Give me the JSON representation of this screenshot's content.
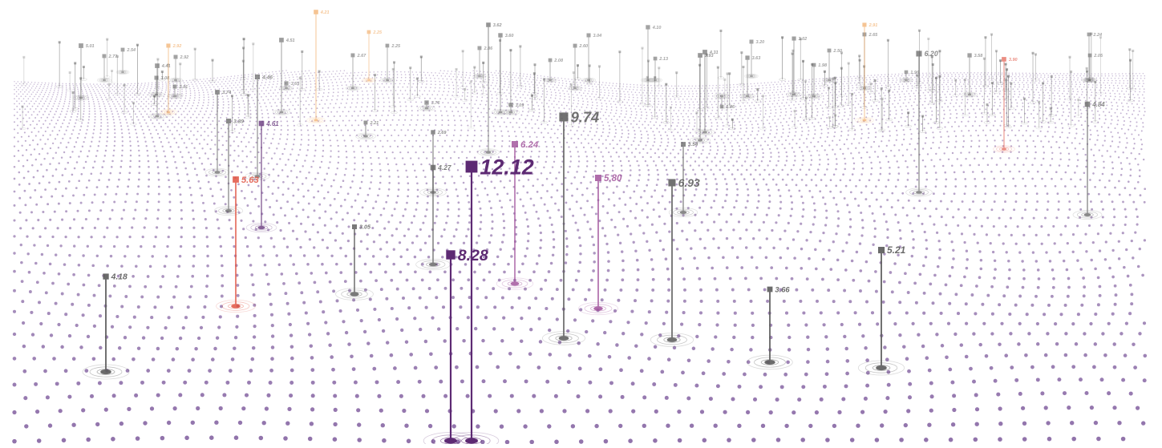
{
  "colors": {
    "dots": "#8a6aa6",
    "default": "#5c5c5c",
    "purple_strong": "#5d2a73",
    "purple_light": "#a0509a",
    "red": "#e0503e",
    "orange": "#f0a050",
    "background": "#ffffff"
  },
  "chart_data": {
    "type": "scatter",
    "title": "",
    "xlabel": "",
    "ylabel": "",
    "points": [
      {
        "value": 12.12,
        "tone": "purple_strong"
      },
      {
        "value": 9.74,
        "tone": "default"
      },
      {
        "value": 8.28,
        "tone": "purple_strong"
      },
      {
        "value": 6.93,
        "tone": "default"
      },
      {
        "value": 6.24,
        "tone": "purple_light"
      },
      {
        "value": 6.2,
        "tone": "default"
      },
      {
        "value": 5.8,
        "tone": "purple_light"
      },
      {
        "value": 5.63,
        "tone": "red"
      },
      {
        "value": 5.21,
        "tone": "default"
      },
      {
        "value": 5.01,
        "tone": "default"
      },
      {
        "value": 4.84,
        "tone": "default"
      },
      {
        "value": 4.61,
        "tone": "purple_strong"
      },
      {
        "value": 4.51,
        "tone": "default"
      },
      {
        "value": 4.46,
        "tone": "default"
      },
      {
        "value": 4.41,
        "tone": "default"
      },
      {
        "value": 4.31,
        "tone": "default"
      },
      {
        "value": 4.27,
        "tone": "default"
      },
      {
        "value": 4.21,
        "tone": "orange"
      },
      {
        "value": 4.18,
        "tone": "default"
      },
      {
        "value": 4.1,
        "tone": "default"
      },
      {
        "value": 3.93,
        "tone": "default"
      },
      {
        "value": 3.9,
        "tone": "red"
      },
      {
        "value": 3.89,
        "tone": "default"
      },
      {
        "value": 3.76,
        "tone": "default"
      },
      {
        "value": 3.74,
        "tone": "default"
      },
      {
        "value": 3.66,
        "tone": "default"
      },
      {
        "value": 3.65,
        "tone": "default"
      },
      {
        "value": 3.63,
        "tone": "default"
      },
      {
        "value": 3.62,
        "tone": "default"
      },
      {
        "value": 3.6,
        "tone": "default"
      },
      {
        "value": 3.58,
        "tone": "default"
      },
      {
        "value": 3.54,
        "tone": "default"
      },
      {
        "value": 3.2,
        "tone": "default"
      },
      {
        "value": 3.09,
        "tone": "default"
      },
      {
        "value": 3.08,
        "tone": "default"
      },
      {
        "value": 3.05,
        "tone": "default"
      },
      {
        "value": 3.04,
        "tone": "default"
      },
      {
        "value": 3.02,
        "tone": "default"
      },
      {
        "value": 2.92,
        "tone": "default"
      },
      {
        "value": 2.92,
        "tone": "orange"
      },
      {
        "value": 2.91,
        "tone": "orange"
      },
      {
        "value": 2.86,
        "tone": "default"
      },
      {
        "value": 2.81,
        "tone": "default"
      },
      {
        "value": 2.77,
        "tone": "default"
      },
      {
        "value": 2.69,
        "tone": "default"
      },
      {
        "value": 2.67,
        "tone": "default"
      },
      {
        "value": 2.65,
        "tone": "default"
      },
      {
        "value": 2.6,
        "tone": "default"
      },
      {
        "value": 2.54,
        "tone": "default"
      },
      {
        "value": 2.5,
        "tone": "default"
      },
      {
        "value": 2.25,
        "tone": "default"
      },
      {
        "value": 2.25,
        "tone": "orange"
      },
      {
        "value": 2.24,
        "tone": "default"
      },
      {
        "value": 2.21,
        "tone": "default"
      },
      {
        "value": 2.13,
        "tone": "default"
      },
      {
        "value": 2.08,
        "tone": "default"
      },
      {
        "value": 2.05,
        "tone": "default"
      },
      {
        "value": 1.98,
        "tone": "default"
      },
      {
        "value": 1.96,
        "tone": "default"
      },
      {
        "value": 1.86,
        "tone": "default"
      }
    ]
  }
}
